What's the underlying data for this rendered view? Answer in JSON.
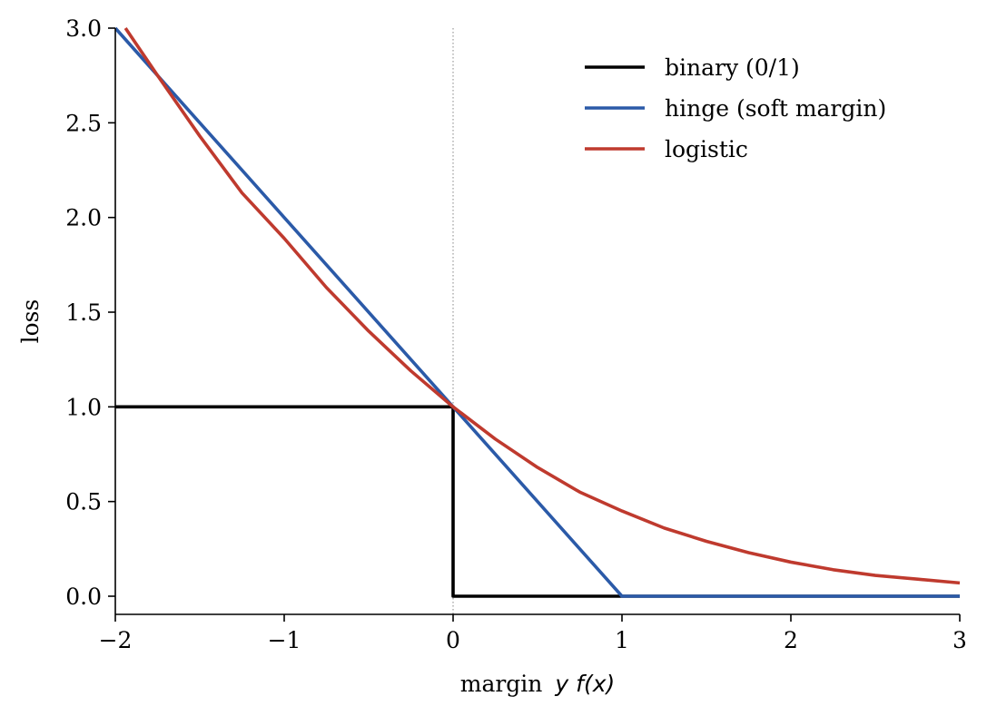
{
  "chart_data": {
    "type": "line",
    "xlabel": "margin",
    "xlabel_math": "y f(x)",
    "ylabel": "loss",
    "xlim": [
      -2,
      3
    ],
    "ylim": [
      -0.1,
      3.0
    ],
    "xticks": [
      -2,
      -1,
      0,
      1,
      2,
      3
    ],
    "xtick_labels": [
      "−2",
      "−1",
      "0",
      "1",
      "2",
      "3"
    ],
    "yticks": [
      0.0,
      0.5,
      1.0,
      1.5,
      2.0,
      2.5,
      3.0
    ],
    "ytick_labels": [
      "0.0",
      "0.5",
      "1.0",
      "1.5",
      "2.0",
      "2.5",
      "3.0"
    ],
    "grid": false,
    "legend_position": "top-right",
    "reference_line": {
      "x": 0,
      "style": "dotted",
      "color": "#999999"
    },
    "series": [
      {
        "name": "binary (0/1)",
        "color": "#000000",
        "x": [
          -2.0,
          -1.0,
          0.0,
          0.0,
          1.0,
          2.0,
          3.0
        ],
        "y": [
          1.0,
          1.0,
          1.0,
          0.0,
          0.0,
          0.0,
          0.0
        ]
      },
      {
        "name": "hinge (soft margin)",
        "color": "#2b5aa8",
        "x": [
          -2.0,
          -1.0,
          0.0,
          1.0,
          2.0,
          3.0
        ],
        "y": [
          3.0,
          2.0,
          1.0,
          0.0,
          0.0,
          0.0
        ]
      },
      {
        "name": "logistic",
        "color": "#bf3a2e",
        "x": [
          -1.94,
          -1.75,
          -1.5,
          -1.25,
          -1.0,
          -0.75,
          -0.5,
          -0.25,
          0.0,
          0.25,
          0.5,
          0.75,
          1.0,
          1.25,
          1.5,
          1.75,
          2.0,
          2.25,
          2.5,
          2.75,
          3.0
        ],
        "y": [
          3.0,
          2.75,
          2.43,
          2.13,
          1.89,
          1.63,
          1.4,
          1.19,
          1.0,
          0.83,
          0.68,
          0.55,
          0.45,
          0.36,
          0.29,
          0.23,
          0.18,
          0.14,
          0.11,
          0.09,
          0.07
        ]
      }
    ]
  }
}
